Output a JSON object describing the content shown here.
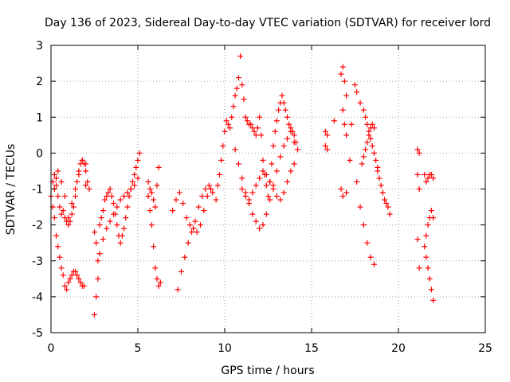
{
  "chart_data": {
    "type": "scatter",
    "title": "Day 136 of 2023, Sidereal Day-to-day VTEC variation (SDTVAR) for receiver lord",
    "xlabel": "GPS time / hours",
    "ylabel": "SDTVAR / TECUs",
    "xlim": [
      0,
      25
    ],
    "ylim": [
      -5,
      3
    ],
    "xticks": [
      0,
      5,
      10,
      15,
      20,
      25
    ],
    "yticks": [
      -5,
      -4,
      -3,
      -2,
      -1,
      0,
      1,
      2,
      3
    ],
    "grid": true,
    "marker": "+",
    "color": "#ff0000",
    "series": [
      {
        "name": "SDTVAR",
        "x": [
          0.0,
          0.1,
          0.2,
          0.3,
          0.4,
          0.5,
          0.6,
          0.7,
          0.8,
          0.9,
          1.0,
          1.1,
          1.2,
          1.3,
          1.4,
          1.5,
          1.6,
          1.7,
          1.8,
          1.9,
          2.0,
          2.1,
          2.2,
          0.2,
          0.3,
          0.4,
          0.5,
          0.6,
          0.7,
          0.8,
          0.9,
          1.0,
          1.1,
          1.2,
          1.3,
          1.4,
          1.5,
          1.6,
          1.7,
          1.8,
          1.9,
          2.0,
          0.1,
          0.2,
          0.3,
          0.4,
          0.6,
          0.8,
          1.0,
          1.2,
          1.4,
          1.6,
          1.8,
          2.0,
          2.5,
          2.6,
          2.7,
          2.8,
          2.9,
          3.0,
          3.1,
          3.2,
          3.3,
          3.4,
          3.5,
          3.6,
          3.7,
          3.8,
          3.9,
          4.0,
          4.1,
          4.2,
          4.3,
          4.4,
          4.5,
          4.6,
          4.7,
          4.8,
          4.9,
          5.0,
          5.1,
          2.5,
          2.6,
          2.7,
          2.8,
          3.0,
          3.2,
          3.4,
          3.6,
          3.8,
          4.0,
          4.2,
          4.4,
          4.6,
          4.8,
          5.0,
          5.6,
          5.7,
          5.8,
          5.9,
          6.0,
          6.1,
          6.2,
          6.3,
          5.6,
          5.7,
          5.8,
          5.9,
          6.0,
          6.1,
          6.2,
          7.0,
          7.2,
          7.4,
          7.6,
          7.8,
          8.0,
          8.2,
          8.4,
          8.6,
          8.8,
          9.0,
          9.2,
          7.3,
          7.5,
          7.7,
          7.9,
          8.1,
          8.3,
          8.5,
          8.7,
          8.9,
          9.1,
          9.3,
          9.5,
          9.6,
          9.7,
          9.8,
          9.9,
          10.0,
          10.1,
          10.2,
          10.3,
          10.4,
          10.5,
          10.6,
          10.7,
          10.8,
          10.9,
          11.0,
          11.1,
          11.2,
          11.3,
          11.4,
          11.5,
          11.6,
          11.7,
          11.8,
          11.9,
          12.0,
          12.1,
          12.2,
          12.3,
          12.4,
          12.5,
          12.6,
          12.7,
          12.8,
          12.9,
          13.0,
          13.1,
          13.2,
          13.3,
          13.4,
          13.5,
          13.6,
          13.7,
          13.8,
          13.9,
          14.0,
          14.1,
          14.2,
          10.6,
          10.8,
          11.0,
          11.2,
          11.4,
          11.6,
          11.8,
          12.0,
          12.2,
          12.4,
          12.6,
          12.8,
          13.0,
          13.2,
          13.4,
          13.6,
          13.8,
          14.0,
          11.0,
          11.2,
          11.4,
          11.6,
          11.8,
          12.0,
          12.2,
          12.4,
          12.6,
          12.8,
          13.0,
          13.2,
          13.4,
          13.6,
          13.8,
          14.0,
          15.8,
          15.9,
          15.8,
          15.9,
          16.3,
          16.7,
          16.8,
          16.9,
          17.0,
          16.8,
          16.9,
          17.0,
          16.7,
          16.8,
          17.0,
          17.2,
          17.3,
          17.5,
          17.6,
          17.8,
          18.0,
          18.1,
          18.2,
          18.3,
          18.4,
          18.5,
          18.6,
          18.7,
          18.8,
          17.6,
          17.8,
          18.0,
          18.2,
          18.4,
          18.6,
          17.9,
          18.0,
          18.1,
          18.2,
          18.3,
          18.4,
          18.5,
          18.6,
          18.8,
          18.9,
          19.0,
          19.1,
          19.2,
          19.3,
          19.4,
          19.5,
          21.1,
          21.2,
          21.1,
          21.2,
          21.1,
          21.2,
          21.5,
          21.6,
          21.7,
          21.8,
          21.9,
          22.0,
          21.5,
          21.6,
          21.7,
          21.8,
          21.9,
          22.0,
          21.6,
          21.7,
          21.8,
          21.9,
          22.0
        ],
        "y": [
          -1.2,
          -0.8,
          -1.8,
          -2.3,
          -2.6,
          -2.9,
          -3.2,
          -3.4,
          -3.7,
          -3.8,
          -3.6,
          -3.5,
          -3.4,
          -3.3,
          -3.3,
          -3.4,
          -3.5,
          -3.6,
          -3.7,
          -3.7,
          -0.9,
          -0.8,
          -1.0,
          -0.6,
          -0.9,
          -1.2,
          -1.5,
          -1.7,
          -1.6,
          -1.8,
          -1.9,
          -2.0,
          -1.9,
          -1.7,
          -1.5,
          -1.2,
          -0.8,
          -0.5,
          -0.3,
          -0.2,
          -0.3,
          -0.5,
          -1.5,
          -1.0,
          -0.7,
          -0.5,
          -0.8,
          -1.2,
          -1.8,
          -1.4,
          -1.0,
          -0.6,
          -0.2,
          -0.3,
          -2.2,
          -2.5,
          -3.0,
          -2.0,
          -1.8,
          -1.6,
          -1.3,
          -1.2,
          -1.1,
          -1.0,
          -1.2,
          -1.4,
          -1.7,
          -2.0,
          -2.3,
          -2.5,
          -2.3,
          -2.1,
          -1.8,
          -1.5,
          -1.2,
          -1.0,
          -0.8,
          -0.6,
          -0.4,
          -0.2,
          0.0,
          -4.5,
          -4.0,
          -3.5,
          -2.8,
          -2.4,
          -2.1,
          -1.9,
          -1.7,
          -1.5,
          -1.3,
          -1.2,
          -1.1,
          -1.0,
          -0.9,
          -0.7,
          -1.2,
          -1.6,
          -2.0,
          -2.6,
          -3.2,
          -3.5,
          -3.7,
          -3.6,
          -0.8,
          -1.0,
          -1.1,
          -1.3,
          -1.5,
          -0.9,
          -0.4,
          -1.6,
          -1.3,
          -1.1,
          -1.4,
          -1.8,
          -2.0,
          -2.1,
          -2.2,
          -2.0,
          -1.6,
          -1.2,
          -1.0,
          -3.8,
          -3.3,
          -2.9,
          -2.5,
          -2.2,
          -1.9,
          -1.5,
          -1.2,
          -1.0,
          -0.9,
          -1.1,
          -1.3,
          -0.9,
          -0.6,
          -0.2,
          0.2,
          0.6,
          0.9,
          0.8,
          0.7,
          1.0,
          1.3,
          1.6,
          1.8,
          2.1,
          2.7,
          1.9,
          1.5,
          1.0,
          0.9,
          0.8,
          0.8,
          0.7,
          0.6,
          0.5,
          0.7,
          1.0,
          0.5,
          -0.2,
          -0.6,
          -0.9,
          -1.2,
          -0.8,
          -0.3,
          0.2,
          0.6,
          0.9,
          1.2,
          1.4,
          1.6,
          1.4,
          1.2,
          1.0,
          0.8,
          0.7,
          0.6,
          0.5,
          0.3,
          0.1,
          0.1,
          -0.3,
          -0.7,
          -1.1,
          -1.4,
          -1.7,
          -1.9,
          -2.1,
          -2.0,
          -1.7,
          -1.3,
          -0.9,
          -0.5,
          -0.1,
          0.2,
          0.4,
          0.6,
          0.3,
          -1.0,
          -1.2,
          -1.3,
          -1.1,
          -0.9,
          -0.7,
          -0.5,
          -0.6,
          -0.8,
          -1.0,
          -1.2,
          -1.3,
          -1.1,
          -0.8,
          -0.5,
          -0.3,
          0.6,
          0.1,
          0.2,
          0.5,
          0.9,
          2.2,
          2.4,
          2.0,
          1.6,
          1.2,
          0.8,
          0.5,
          -1.0,
          -1.2,
          -1.1,
          -0.2,
          0.8,
          1.9,
          1.7,
          1.4,
          1.2,
          1.0,
          0.8,
          0.6,
          0.4,
          0.2,
          0.0,
          -0.2,
          -0.4,
          -0.8,
          -1.5,
          -2.0,
          -2.5,
          -2.9,
          -3.1,
          -0.3,
          -0.1,
          0.1,
          0.3,
          0.5,
          0.7,
          0.8,
          0.7,
          -0.5,
          -0.7,
          -0.9,
          -1.1,
          -1.3,
          -1.4,
          -1.5,
          -1.7,
          0.1,
          0.0,
          -0.6,
          -1.0,
          -2.4,
          -3.2,
          -0.6,
          -0.8,
          -0.7,
          -0.6,
          -0.6,
          -0.7,
          -2.6,
          -2.9,
          -3.2,
          -3.5,
          -3.8,
          -4.1,
          -2.3,
          -2.0,
          -1.8,
          -1.6,
          -1.8
        ]
      }
    ]
  }
}
